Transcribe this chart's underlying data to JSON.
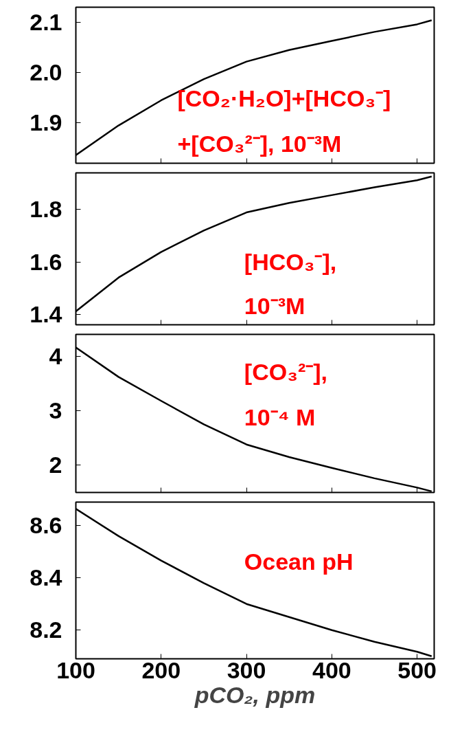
{
  "chart_data": [
    {
      "type": "line",
      "color": "#000000",
      "x": [
        100,
        150,
        200,
        250,
        300,
        350,
        400,
        450,
        500,
        517
      ],
      "values": [
        1.836,
        1.895,
        1.945,
        1.987,
        2.022,
        2.045,
        2.063,
        2.081,
        2.096,
        2.104
      ],
      "xlim": [
        100,
        520
      ],
      "xticks": [
        100,
        200,
        300,
        400,
        500
      ],
      "ylim": [
        1.82,
        2.13
      ],
      "yticks": [
        1.9,
        {
          "value": 2,
          "label": "2.0"
        },
        2.1
      ],
      "tick_labels": "y",
      "annotations": [
        "[CO₂·H₂O]+[HCO₃⁻]",
        "+[CO₃²⁻], 10⁻³M"
      ]
    },
    {
      "type": "line",
      "color": "#000000",
      "x": [
        100,
        150,
        200,
        250,
        300,
        350,
        400,
        450,
        500,
        517
      ],
      "values": [
        1.411,
        1.54,
        1.638,
        1.72,
        1.789,
        1.825,
        1.855,
        1.885,
        1.912,
        1.926
      ],
      "xlim": [
        100,
        520
      ],
      "xticks": [
        100,
        200,
        300,
        400,
        500
      ],
      "ylim": [
        1.36,
        1.94
      ],
      "yticks": [
        1.4,
        1.6,
        1.8
      ],
      "tick_labels": "y",
      "annotations": [
        "[HCO₃⁻],",
        "10⁻³M"
      ]
    },
    {
      "type": "line",
      "color": "#000000",
      "x": [
        100,
        150,
        200,
        250,
        300,
        350,
        400,
        450,
        500,
        517
      ],
      "values": [
        4.16,
        3.62,
        3.18,
        2.75,
        2.38,
        2.15,
        1.95,
        1.76,
        1.59,
        1.52
      ],
      "xlim": [
        100,
        520
      ],
      "xticks": [
        100,
        200,
        300,
        400,
        500
      ],
      "ylim": [
        1.5,
        4.4
      ],
      "yticks": [
        2,
        3,
        4
      ],
      "tick_labels": "y",
      "annotations": [
        "[CO₃²⁻],",
        "10⁻⁴ M"
      ]
    },
    {
      "type": "line",
      "color": "#000000",
      "x": [
        100,
        150,
        200,
        250,
        300,
        350,
        400,
        450,
        500,
        517
      ],
      "values": [
        8.664,
        8.56,
        8.466,
        8.38,
        8.3,
        8.25,
        8.2,
        8.155,
        8.117,
        8.1
      ],
      "xlim": [
        100,
        520
      ],
      "xticks": [
        100,
        200,
        300,
        400,
        500
      ],
      "ylim": [
        8.09,
        8.69
      ],
      "yticks": [
        8.2,
        8.4,
        8.6
      ],
      "xlabel": "pCO₂, ppm",
      "annotations": [
        "Ocean pH"
      ]
    }
  ]
}
